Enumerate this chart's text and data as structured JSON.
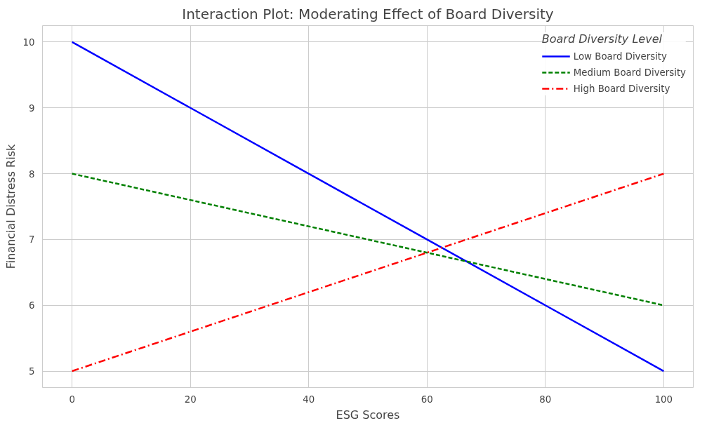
{
  "chart_data": {
    "type": "line",
    "title": "Interaction Plot: Moderating Effect of Board Diversity",
    "xlabel": "ESG Scores",
    "ylabel": "Financial Distress Risk",
    "legend_title": "Board Diversity Level",
    "x": [
      0,
      20,
      40,
      60,
      80,
      100
    ],
    "series": [
      {
        "name": "Low Board Diversity",
        "color": "#0000ff",
        "line_style": "solid",
        "values": [
          10,
          9,
          8,
          7,
          6,
          5
        ]
      },
      {
        "name": "Medium Board Diversity",
        "color": "#008000",
        "line_style": "dashed",
        "values": [
          8,
          7.6,
          7.2,
          6.8,
          6.4,
          6
        ]
      },
      {
        "name": "High Board Diversity",
        "color": "#ff0000",
        "line_style": "dashdot",
        "values": [
          5,
          5.6,
          6.2,
          6.8,
          7.4,
          8
        ]
      }
    ],
    "xlim": [
      -5,
      105
    ],
    "ylim": [
      4.75,
      10.25
    ],
    "xticks": [
      0,
      20,
      40,
      60,
      80,
      100
    ],
    "yticks": [
      5,
      6,
      7,
      8,
      9,
      10
    ],
    "grid": true,
    "legend": "top right",
    "marker": "none"
  }
}
